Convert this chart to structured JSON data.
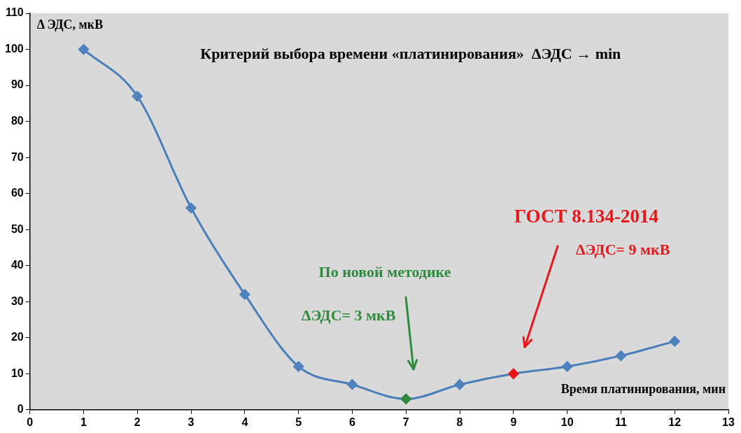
{
  "chart_data": {
    "type": "line",
    "title": "Критерий выбора времени «платинирования»  ΔЭДС → min",
    "xlabel": "Время платинирования, мин",
    "ylabel": "Δ ЭДС, мкВ",
    "x": [
      1,
      2,
      3,
      4,
      5,
      6,
      7,
      8,
      9,
      10,
      11,
      12
    ],
    "series": [
      {
        "color": "#4a7ebb",
        "colors": [
          "#4f81bd",
          "#4f81bd",
          "#4f81bd",
          "#4f81bd",
          "#4f81bd",
          "#4f81bd",
          "#2e8b3e",
          "#4f81bd",
          "#e8161b",
          "#4f81bd",
          "#4f81bd",
          "#4f81bd"
        ],
        "values": [
          100,
          87,
          56,
          32,
          12,
          7,
          3,
          7,
          10,
          12,
          15,
          19
        ]
      }
    ],
    "xlim": [
      0,
      13
    ],
    "xticks": [
      0,
      1,
      2,
      3,
      4,
      5,
      6,
      7,
      8,
      9,
      10,
      11,
      12,
      13
    ],
    "ylim": [
      0,
      110
    ],
    "yticks": [
      0,
      10,
      20,
      30,
      40,
      50,
      60,
      70,
      80,
      90,
      100,
      110
    ],
    "grid": false,
    "legend": false,
    "marker": "diamond",
    "line_style": "solid",
    "annotations": [
      "По новой методике",
      "ΔЭДС= 3 мкВ",
      "ГОСТ 8.134-2014",
      "ΔЭДС= 9 мкВ"
    ]
  }
}
